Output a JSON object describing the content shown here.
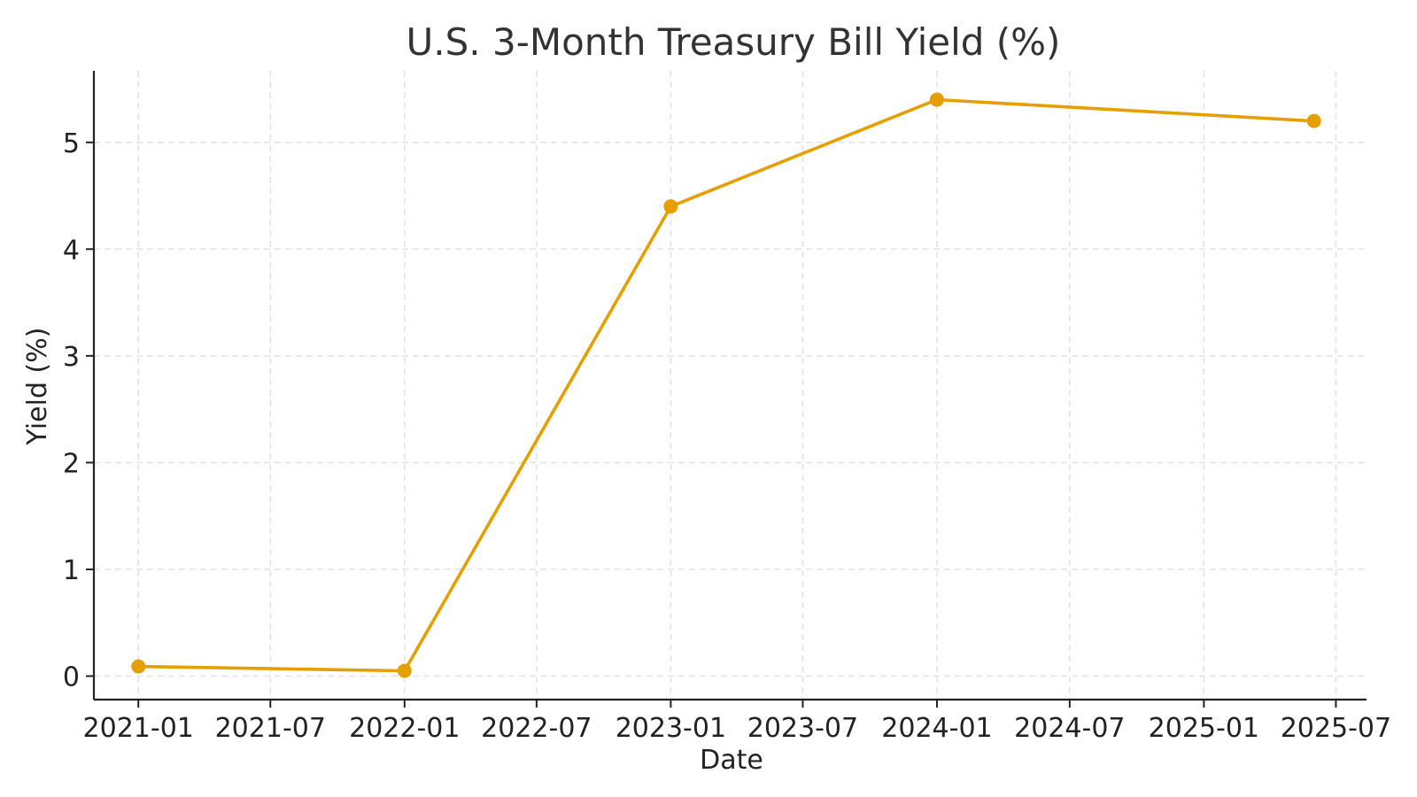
{
  "chart_data": {
    "type": "line",
    "title": "U.S. 3-Month Treasury Bill Yield (%)",
    "xlabel": "Date",
    "ylabel": "Yield (%)",
    "x_axis": {
      "kind": "date",
      "range": [
        "2020-11-01",
        "2025-08-12"
      ],
      "ticks": [
        "2021-01-01",
        "2021-07-01",
        "2022-01-01",
        "2022-07-01",
        "2023-01-01",
        "2023-07-01",
        "2024-01-01",
        "2024-07-01",
        "2025-01-01",
        "2025-07-01"
      ],
      "tick_labels": [
        "2021-01",
        "2021-07",
        "2022-01",
        "2022-07",
        "2023-01",
        "2023-07",
        "2024-01",
        "2024-07",
        "2025-01",
        "2025-07"
      ]
    },
    "y_axis": {
      "range": [
        -0.22,
        5.67
      ],
      "ticks": [
        0,
        1,
        2,
        3,
        4,
        5
      ],
      "tick_labels": [
        "0",
        "1",
        "2",
        "3",
        "4",
        "5"
      ]
    },
    "grid": true,
    "series": [
      {
        "color": "#E69F00",
        "marker": "circle",
        "points": [
          {
            "x": "2021-01-01",
            "y": 0.09
          },
          {
            "x": "2022-01-01",
            "y": 0.05
          },
          {
            "x": "2023-01-01",
            "y": 4.4
          },
          {
            "x": "2024-01-01",
            "y": 5.4
          },
          {
            "x": "2025-06-01",
            "y": 5.2
          }
        ]
      }
    ]
  }
}
